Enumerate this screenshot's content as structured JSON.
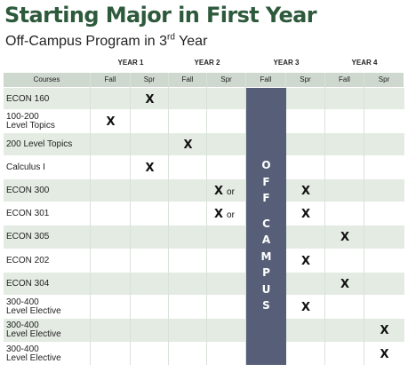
{
  "title": "Starting Major in First Year",
  "subtitle": {
    "text": "Off-Campus Program in 3",
    "sup": "rd",
    "tail": " Year"
  },
  "years": [
    "YEAR 1",
    "YEAR 2",
    "YEAR 3",
    "YEAR 4"
  ],
  "columns": [
    "Courses",
    "Fall",
    "Spr",
    "Fall",
    "Spr",
    "Fall",
    "Spr",
    "Fall",
    "Spr"
  ],
  "off_campus": {
    "word1": [
      "O",
      "F",
      "F"
    ],
    "word2": [
      "C",
      "A",
      "M",
      "P",
      "U",
      "S"
    ]
  },
  "mark_symbol": "X",
  "or_text": "or",
  "rows": [
    {
      "course": [
        "ECON 160"
      ],
      "marks": [
        {
          "col": 2,
          "or": false
        }
      ]
    },
    {
      "course": [
        "100-200",
        "Level Topics"
      ],
      "marks": [
        {
          "col": 1,
          "or": false
        }
      ]
    },
    {
      "course": [
        "200 Level Topics"
      ],
      "marks": [
        {
          "col": 3,
          "or": false
        }
      ]
    },
    {
      "course": [
        "Calculus I"
      ],
      "marks": [
        {
          "col": 2,
          "or": false
        }
      ]
    },
    {
      "course": [
        "ECON 300"
      ],
      "marks": [
        {
          "col": 4,
          "or": true
        },
        {
          "col": 6,
          "or": false
        }
      ]
    },
    {
      "course": [
        "ECON 301"
      ],
      "marks": [
        {
          "col": 4,
          "or": true
        },
        {
          "col": 6,
          "or": false
        }
      ]
    },
    {
      "course": [
        "ECON 305"
      ],
      "marks": [
        {
          "col": 7,
          "or": false
        }
      ]
    },
    {
      "course": [
        "ECON 202"
      ],
      "marks": [
        {
          "col": 6,
          "or": false
        }
      ]
    },
    {
      "course": [
        "ECON 304"
      ],
      "marks": [
        {
          "col": 7,
          "or": false
        }
      ]
    },
    {
      "course": [
        "300-400",
        "Level Elective"
      ],
      "marks": [
        {
          "col": 6,
          "or": false
        }
      ]
    },
    {
      "course": [
        "300-400",
        "Level Elective"
      ],
      "marks": [
        {
          "col": 8,
          "or": false
        }
      ]
    },
    {
      "course": [
        "300-400",
        "Level Elective"
      ],
      "marks": [
        {
          "col": 8,
          "or": false
        }
      ]
    }
  ],
  "colors": {
    "title_green": "#2e5a3c",
    "header_bg": "#cfd8cf",
    "row_alt": "#e3ebe2",
    "off_campus": "#575f78"
  }
}
